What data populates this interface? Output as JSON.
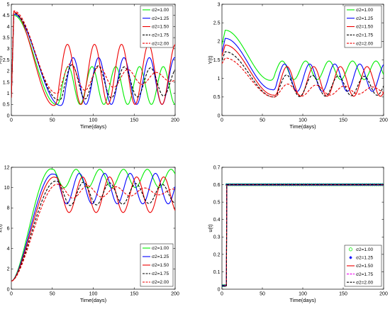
{
  "chart_data": [
    {
      "type": "line",
      "xlabel": "Time(days)",
      "ylabel": "X(t)",
      "xlim": [
        0,
        200
      ],
      "ylim": [
        0,
        5
      ],
      "xticks": [
        0,
        50,
        100,
        150,
        200
      ],
      "yticks": [
        0,
        0.5,
        1,
        1.5,
        2,
        2.5,
        3,
        3.5,
        4,
        4.5,
        5
      ],
      "legend_position": "top-right",
      "series": [
        {
          "name": "σ2=1.00",
          "color": "#00ee00",
          "dash": "solid",
          "model": {
            "kind": "decay_osc",
            "start": 0.8,
            "peak_t": 3,
            "peak": 4.5,
            "dip_t": 55,
            "dip": 0.5,
            "center": 1.35,
            "amp": 0.85,
            "amp_end": 0.85,
            "period": 29,
            "phase_t": 55
          }
        },
        {
          "name": "σ2=1.25",
          "color": "#0000ff",
          "dash": "solid",
          "model": {
            "kind": "decay_osc",
            "start": 0.8,
            "peak_t": 3,
            "peak": 4.55,
            "dip_t": 60,
            "dip": 0.45,
            "center": 1.55,
            "amp": 1.05,
            "amp_end": 1.05,
            "period": 31,
            "phase_t": 60
          }
        },
        {
          "name": "σ2=1.50",
          "color": "#ee0000",
          "dash": "solid",
          "model": {
            "kind": "decay_osc",
            "start": 0.8,
            "peak_t": 3,
            "peak": 4.65,
            "dip_t": 52,
            "dip": 0.45,
            "center": 1.85,
            "amp": 1.35,
            "amp_end": 1.35,
            "period": 33,
            "phase_t": 52
          }
        },
        {
          "name": "σ2=1.75",
          "color": "#000000",
          "dash": "dash",
          "model": {
            "kind": "decay_osc",
            "start": 0.8,
            "peak_t": 3,
            "peak": 4.6,
            "dip_t": 58,
            "dip": 0.7,
            "center": 1.5,
            "amp": 0.8,
            "amp_end": 0.6,
            "period": 32,
            "phase_t": 58
          }
        },
        {
          "name": "σ2=2.00",
          "color": "#ee0000",
          "dash": "dash",
          "model": {
            "kind": "decay_osc",
            "start": 0.8,
            "peak_t": 3,
            "peak": 4.7,
            "dip_t": 55,
            "dip": 1.0,
            "center": 1.7,
            "amp": 0.7,
            "amp_end": 0.15,
            "period": 35,
            "phase_t": 55
          }
        }
      ]
    },
    {
      "type": "line",
      "xlabel": "Time(days)",
      "ylabel": "Y(t)",
      "xlim": [
        0,
        200
      ],
      "ylim": [
        0,
        3
      ],
      "xticks": [
        0,
        50,
        100,
        150,
        200
      ],
      "yticks": [
        0,
        0.5,
        1,
        1.5,
        2,
        2.5,
        3
      ],
      "legend_position": "top-right",
      "series": [
        {
          "name": "σ2=1.00",
          "color": "#00ee00",
          "dash": "solid",
          "model": {
            "kind": "decay_osc",
            "start": 1.9,
            "peak_t": 4,
            "peak": 2.3,
            "dip_t": 60,
            "dip": 0.95,
            "center": 1.22,
            "amp": 0.25,
            "amp_end": 0.25,
            "period": 29,
            "phase_t": 60
          }
        },
        {
          "name": "σ2=1.25",
          "color": "#0000ff",
          "dash": "solid",
          "model": {
            "kind": "decay_osc",
            "start": 1.7,
            "peak_t": 4,
            "peak": 2.08,
            "dip_t": 62,
            "dip": 0.7,
            "center": 1.02,
            "amp": 0.37,
            "amp_end": 0.37,
            "period": 31,
            "phase_t": 62
          }
        },
        {
          "name": "σ2=1.50",
          "color": "#ee0000",
          "dash": "solid",
          "model": {
            "kind": "decay_osc",
            "start": 1.6,
            "peak_t": 4,
            "peak": 1.9,
            "dip_t": 64,
            "dip": 0.55,
            "center": 0.92,
            "amp": 0.4,
            "amp_end": 0.4,
            "period": 33,
            "phase_t": 64
          }
        },
        {
          "name": "σ2=1.75",
          "color": "#000000",
          "dash": "dash",
          "model": {
            "kind": "decay_osc",
            "start": 1.5,
            "peak_t": 4,
            "peak": 1.72,
            "dip_t": 64,
            "dip": 0.5,
            "center": 0.8,
            "amp": 0.3,
            "amp_end": 0.25,
            "period": 32,
            "phase_t": 64
          }
        },
        {
          "name": "σ2=2.00",
          "color": "#ee0000",
          "dash": "dash",
          "model": {
            "kind": "decay_osc",
            "start": 1.4,
            "peak_t": 4,
            "peak": 1.55,
            "dip_t": 64,
            "dip": 0.5,
            "center": 0.68,
            "amp": 0.18,
            "amp_end": 0.08,
            "period": 35,
            "phase_t": 64
          }
        }
      ]
    },
    {
      "type": "line",
      "xlabel": "Time(days)",
      "ylabel": "Z(t)",
      "xlim": [
        0,
        200
      ],
      "ylim": [
        0,
        12
      ],
      "xticks": [
        0,
        50,
        100,
        150,
        200
      ],
      "yticks": [
        0,
        2,
        4,
        6,
        8,
        10,
        12
      ],
      "legend_position": "bottom-right",
      "series": [
        {
          "name": "σ2=1.00",
          "color": "#00ee00",
          "dash": "solid",
          "model": {
            "kind": "growth_osc",
            "start": 0.8,
            "peak_t": 50,
            "peak": 11.8,
            "center": 10.9,
            "amp": 0.9,
            "amp_end": 0.9,
            "period": 29
          }
        },
        {
          "name": "σ2=1.25",
          "color": "#0000ff",
          "dash": "solid",
          "model": {
            "kind": "growth_osc",
            "start": 0.8,
            "peak_t": 52,
            "peak": 11.3,
            "center": 9.9,
            "amp": 1.5,
            "amp_end": 1.5,
            "period": 31
          }
        },
        {
          "name": "σ2=1.50",
          "color": "#ee0000",
          "dash": "solid",
          "model": {
            "kind": "growth_osc",
            "start": 0.8,
            "peak_t": 54,
            "peak": 11.0,
            "center": 9.3,
            "amp": 1.75,
            "amp_end": 1.75,
            "period": 33
          }
        },
        {
          "name": "σ2=1.75",
          "color": "#000000",
          "dash": "dash",
          "model": {
            "kind": "growth_osc",
            "start": 0.8,
            "peak_t": 56,
            "peak": 10.6,
            "center": 9.4,
            "amp": 1.2,
            "amp_end": 0.9,
            "period": 32
          }
        },
        {
          "name": "σ2=2.00",
          "color": "#ee0000",
          "dash": "dash",
          "model": {
            "kind": "growth_osc",
            "start": 0.8,
            "peak_t": 58,
            "peak": 10.3,
            "center": 9.6,
            "amp": 0.7,
            "amp_end": 0.25,
            "period": 35
          }
        }
      ]
    },
    {
      "type": "line",
      "xlabel": "Time(days)",
      "ylabel": "u(t)",
      "xlim": [
        0,
        200
      ],
      "ylim": [
        0,
        0.7
      ],
      "xticks": [
        0,
        50,
        100,
        150,
        200
      ],
      "yticks": [
        0,
        0.1,
        0.2,
        0.3,
        0.4,
        0.5,
        0.6,
        0.7
      ],
      "legend_position": "bottom-right",
      "series": [
        {
          "name": "σ2=1.00",
          "color": "#00ee00",
          "dash": "solid",
          "marker": "circle",
          "model": {
            "kind": "step",
            "low": 0.02,
            "step_t": 6,
            "high": 0.6
          }
        },
        {
          "name": "σ2=1.25",
          "color": "#0000ff",
          "dash": "solid",
          "marker": "star",
          "model": {
            "kind": "step",
            "low": 0.02,
            "step_t": 6,
            "high": 0.6
          }
        },
        {
          "name": "σ2=1.50",
          "color": "#ee0000",
          "dash": "solid",
          "marker": "none",
          "model": {
            "kind": "step",
            "low": 0.02,
            "step_t": 6,
            "high": 0.6
          }
        },
        {
          "name": "σ2=1.75",
          "color": "#ee00ee",
          "dash": "dash",
          "marker": "none",
          "model": {
            "kind": "step",
            "low": 0.02,
            "step_t": 6,
            "high": 0.6
          }
        },
        {
          "name": "σ2=2.00",
          "color": "#000000",
          "dash": "dash",
          "marker": "none",
          "model": {
            "kind": "step",
            "low": 0.02,
            "step_t": 6,
            "high": 0.6
          }
        }
      ]
    }
  ]
}
